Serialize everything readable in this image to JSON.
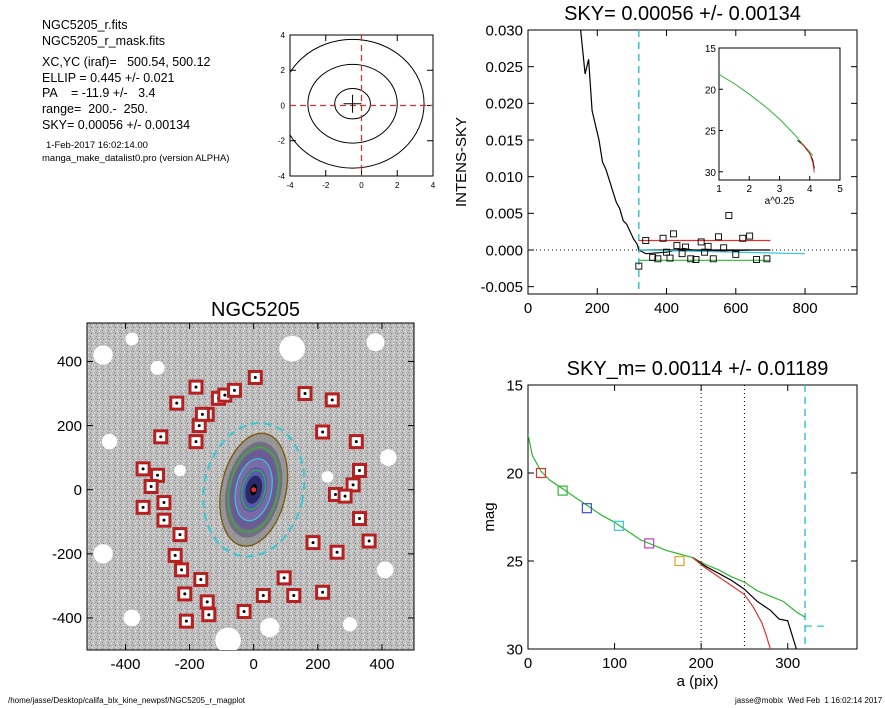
{
  "info": {
    "file_name": "NGC5205_r.fits",
    "mask_name": "NGC5205_r_mask.fits",
    "xcyc": "XC,YC (iraf)=   500.54, 500.12",
    "ellip": "ELLIP = 0.445 +/- 0.021",
    "pa": "PA    = -11.9 +/-   3.4",
    "range": "range=  200.-  250.",
    "sky": "SKY= 0.00056 +/- 0.00134",
    "date": "1-Feb-2017 16:02:14.00",
    "program": "manga_make_datalist0.pro (version ALPHA)"
  },
  "footer": {
    "left": "/home/jasse/Desktop/califa_blx_kine_newpsf/NGC5205_r_magplot",
    "right": "jasse@mobix  Wed Feb  1 16:02:14 2017"
  },
  "chart_data": [
    {
      "id": "contour",
      "type": "contour",
      "title": "",
      "xlim": [
        -4,
        4
      ],
      "ylim": [
        -4,
        4
      ],
      "xticks": [
        "-4",
        "-2",
        "0",
        "2",
        "4"
      ],
      "yticks": [
        "-4",
        "-2",
        "0",
        "2",
        "4"
      ],
      "center": [
        -0.5,
        0.1
      ],
      "contour_colors": [
        "#000000"
      ],
      "crosshair_color": "#d33030",
      "crosshair_at": [
        0,
        0
      ]
    },
    {
      "id": "sky",
      "type": "line",
      "title": "SKY= 0.00056 +/- 0.00134",
      "xlabel": "",
      "ylabel": "INTENS-SKY",
      "xlim": [
        0,
        950
      ],
      "ylim": [
        -0.006,
        0.03
      ],
      "xticks": [
        "0",
        "200",
        "400",
        "600",
        "800"
      ],
      "yticks": [
        "-0.005",
        "0.000",
        "0.005",
        "0.010",
        "0.015",
        "0.020",
        "0.025",
        "0.030"
      ],
      "vline": 320,
      "vline_color": "#33c9d6",
      "series": [
        {
          "color": "#000000",
          "x": [
            150,
            165,
            175,
            185,
            195,
            205,
            215,
            225,
            235,
            245,
            255,
            265,
            275,
            285,
            295,
            305,
            315,
            320,
            340,
            400,
            450,
            500,
            560,
            640
          ],
          "y": [
            0.031,
            0.024,
            0.026,
            0.019,
            0.017,
            0.015,
            0.012,
            0.011,
            0.0095,
            0.008,
            0.0065,
            0.0056,
            0.004,
            0.0035,
            0.0025,
            0.0015,
            0.0008,
            0.0,
            -0.0005,
            -0.0003,
            0.0002,
            -0.0002,
            -0.0001,
            0.0
          ]
        },
        {
          "color": "#000000",
          "x": [
            320,
            700
          ],
          "y": [
            0.0,
            0.0
          ]
        },
        {
          "color": "#2db82d",
          "x": [
            320,
            700
          ],
          "y": [
            -0.0014,
            -0.0014
          ]
        },
        {
          "color": "#e03030",
          "x": [
            320,
            700
          ],
          "y": [
            0.0013,
            0.0013
          ]
        },
        {
          "color": "#33c9d6",
          "x": [
            320,
            800
          ],
          "y": [
            0.0,
            -0.0005
          ]
        }
      ],
      "points": {
        "x": [
          320,
          340,
          360,
          375,
          390,
          400,
          410,
          420,
          430,
          445,
          455,
          470,
          485,
          500,
          510,
          520,
          535,
          550,
          565,
          580,
          600,
          620,
          640,
          660,
          690
        ],
        "y": [
          -0.0022,
          0.0013,
          -0.001,
          -0.0012,
          0.0016,
          -0.0003,
          -0.0011,
          0.0022,
          0.0006,
          -0.0005,
          0.0004,
          -0.0012,
          -0.0013,
          0.0011,
          -0.0003,
          0.0005,
          -0.0012,
          0.0018,
          0.0003,
          0.0047,
          -0.0006,
          0.0016,
          0.0019,
          -0.0013,
          -0.0012
        ]
      },
      "inset": {
        "xlabel": "a^0.25",
        "xlim": [
          1,
          5
        ],
        "ylim": [
          15,
          31
        ],
        "xticks": [
          "1",
          "2",
          "3",
          "4",
          "5"
        ],
        "yticks": [
          "15",
          "20",
          "25",
          "30"
        ],
        "series": [
          {
            "color": "#2db82d",
            "x": [
              1.0,
              1.5,
              2.0,
              2.5,
              3.0,
              3.5,
              3.8,
              4.0,
              4.1
            ],
            "y": [
              18.2,
              19.3,
              20.6,
              22.0,
              23.6,
              25.5,
              26.8,
              27.6,
              28.0
            ]
          },
          {
            "color": "#000000",
            "x": [
              3.6,
              3.8,
              3.9,
              4.0,
              4.1,
              4.15
            ],
            "y": [
              26.2,
              26.8,
              27.3,
              27.8,
              28.6,
              29.6
            ]
          },
          {
            "color": "#e03030",
            "x": [
              3.7,
              3.9,
              4.0,
              4.1,
              4.15
            ],
            "y": [
              26.5,
              27.2,
              27.8,
              28.9,
              30.1
            ]
          }
        ]
      }
    },
    {
      "id": "image",
      "type": "scatter",
      "title": "NGC5205",
      "xlim": [
        -520,
        500
      ],
      "ylim": [
        -500,
        520
      ],
      "xticks": [
        "-400",
        "-200",
        "0",
        "200",
        "400"
      ],
      "yticks": [
        "-400",
        "-200",
        "0",
        "200",
        "400"
      ],
      "ellipse": {
        "cx": 0,
        "cy": 0,
        "a": 210,
        "b": 155,
        "pa": -11.9
      },
      "masks": {
        "x": [
          -240,
          -180,
          -145,
          -110,
          -90,
          -60,
          5,
          160,
          245,
          -290,
          -170,
          -180,
          -160,
          215,
          320,
          -345,
          -300,
          -320,
          -280,
          330,
          310,
          255,
          285,
          -345,
          -280,
          330,
          -230,
          360,
          -245,
          185,
          -225,
          260,
          -165,
          -215,
          95,
          215,
          125,
          30,
          -30,
          -140,
          -145,
          -210
        ],
        "y": [
          270,
          320,
          235,
          285,
          295,
          310,
          350,
          300,
          280,
          165,
          200,
          150,
          235,
          180,
          150,
          65,
          45,
          10,
          -40,
          60,
          15,
          -15,
          -20,
          -55,
          -95,
          -90,
          -140,
          -160,
          -205,
          -165,
          -250,
          -195,
          -280,
          -325,
          -275,
          -320,
          -330,
          -330,
          -380,
          -390,
          -350,
          -410
        ]
      },
      "mask_color": "#b52020",
      "ellipse_color": "#33c9d6"
    },
    {
      "id": "mag",
      "type": "line",
      "title": "SKY_m=  0.00114 +/- 0.01189",
      "xlabel": "a (pix)",
      "ylabel": "mag",
      "xlim": [
        0,
        380
      ],
      "ylim": [
        15,
        30
      ],
      "xticks": [
        "0",
        "100",
        "200",
        "300"
      ],
      "yticks": [
        "15",
        "20",
        "25",
        "30"
      ],
      "vlines": [
        200,
        250
      ],
      "vline_sky": 320,
      "series": [
        {
          "color": "#2db82d",
          "x": [
            0,
            5,
            15,
            25,
            40,
            55,
            70,
            85,
            100,
            115,
            130,
            145,
            160,
            175,
            190,
            205,
            220,
            235,
            250,
            265,
            280,
            295,
            310,
            320
          ],
          "y": [
            17.8,
            19.0,
            19.9,
            20.4,
            20.9,
            21.4,
            21.9,
            22.4,
            22.8,
            23.3,
            23.8,
            24.1,
            24.4,
            24.6,
            24.8,
            25.2,
            25.5,
            25.9,
            26.2,
            26.7,
            27.0,
            27.3,
            27.9,
            28.2
          ]
        },
        {
          "color": "#000000",
          "x": [
            190,
            205,
            220,
            235,
            250,
            265,
            280,
            290,
            300,
            310
          ],
          "y": [
            24.8,
            25.3,
            25.7,
            26.1,
            26.6,
            27.3,
            27.8,
            28.3,
            28.4,
            30.0
          ]
        },
        {
          "color": "#e03030",
          "x": [
            190,
            205,
            220,
            235,
            250,
            260,
            270,
            275,
            280
          ],
          "y": [
            24.8,
            25.4,
            25.9,
            26.4,
            26.9,
            27.6,
            28.5,
            29.2,
            30.0
          ]
        },
        {
          "color": "#33c9d6",
          "x": [
            320,
            345
          ],
          "y": [
            28.7,
            28.7
          ]
        }
      ],
      "markers": {
        "x": [
          15,
          40,
          68,
          105,
          140,
          175
        ],
        "y": [
          20.0,
          21.0,
          22.0,
          23.0,
          24.0,
          25.0
        ],
        "colors": [
          "#e03030",
          "#2db82d",
          "#3a4fd8",
          "#33c9d6",
          "#c040c0",
          "#e0a020"
        ]
      }
    }
  ]
}
